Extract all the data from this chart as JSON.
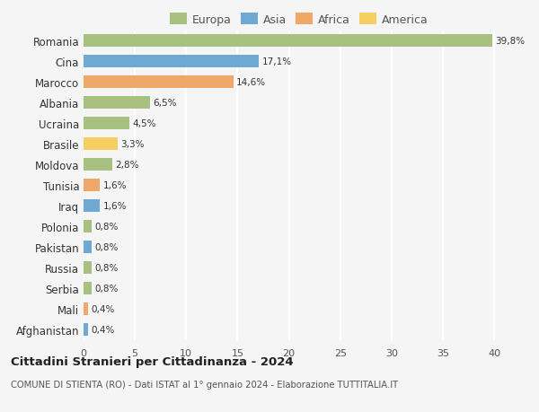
{
  "categories": [
    "Afghanistan",
    "Mali",
    "Serbia",
    "Russia",
    "Pakistan",
    "Polonia",
    "Iraq",
    "Tunisia",
    "Moldova",
    "Brasile",
    "Ucraina",
    "Albania",
    "Marocco",
    "Cina",
    "Romania"
  ],
  "values": [
    0.4,
    0.4,
    0.8,
    0.8,
    0.8,
    0.8,
    1.6,
    1.6,
    2.8,
    3.3,
    4.5,
    6.5,
    14.6,
    17.1,
    39.8
  ],
  "labels": [
    "0,4%",
    "0,4%",
    "0,8%",
    "0,8%",
    "0,8%",
    "0,8%",
    "1,6%",
    "1,6%",
    "2,8%",
    "3,3%",
    "4,5%",
    "6,5%",
    "14,6%",
    "17,1%",
    "39,8%"
  ],
  "colors": [
    "#6fa8d0",
    "#f0a868",
    "#a8c080",
    "#a8c080",
    "#6fa8d0",
    "#a8c080",
    "#6fa8d0",
    "#f0a868",
    "#a8c080",
    "#f5d060",
    "#a8c080",
    "#a8c080",
    "#f0a868",
    "#6fa8d0",
    "#a8c080"
  ],
  "continent_colors": {
    "Europa": "#a8c080",
    "Asia": "#6fa8d0",
    "Africa": "#f0a868",
    "America": "#f5d060"
  },
  "title1": "Cittadini Stranieri per Cittadinanza - 2024",
  "title2": "COMUNE DI STIENTA (RO) - Dati ISTAT al 1° gennaio 2024 - Elaborazione TUTTITALIA.IT",
  "xlim": [
    0,
    42
  ],
  "xticks": [
    0,
    5,
    10,
    15,
    20,
    25,
    30,
    35,
    40
  ],
  "background_color": "#f5f5f5",
  "grid_color": "#ffffff",
  "bar_height": 0.6
}
